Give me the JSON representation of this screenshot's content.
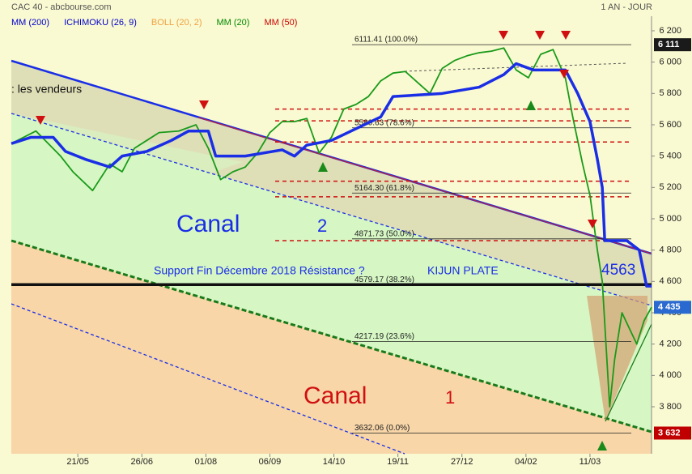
{
  "chart_data": {
    "type": "line",
    "title": "CAC 40 - abcbourse.com",
    "period": "1 AN - JOUR",
    "indicators": [
      {
        "name": "MM (200)",
        "color": "#0000cc"
      },
      {
        "name": "ICHIMOKU (26, 9)",
        "color": "#0000cc"
      },
      {
        "name": "BOLL (20, 2)",
        "color": "#f0a040"
      },
      {
        "name": "MM (20)",
        "color": "#008800"
      },
      {
        "name": "MM (50)",
        "color": "#cc0000"
      }
    ],
    "xlim": [
      0,
      260
    ],
    "xticks": [
      {
        "value": 27,
        "label": "21/05"
      },
      {
        "value": 53,
        "label": "26/06"
      },
      {
        "value": 79,
        "label": "01/08"
      },
      {
        "value": 105,
        "label": "06/09"
      },
      {
        "value": 131,
        "label": "14/10"
      },
      {
        "value": 157,
        "label": "19/11"
      },
      {
        "value": 183,
        "label": "27/12"
      },
      {
        "value": 209,
        "label": "04/02"
      },
      {
        "value": 235,
        "label": "11/03"
      }
    ],
    "ylim": [
      3500,
      6293
    ],
    "yticks": [
      {
        "value": 3800,
        "label": "3 800"
      },
      {
        "value": 4000,
        "label": "4 000"
      },
      {
        "value": 4200,
        "label": "4 200"
      },
      {
        "value": 4400,
        "label": "4 400"
      },
      {
        "value": 4600,
        "label": "4 600"
      },
      {
        "value": 4800,
        "label": "4 800"
      },
      {
        "value": 5000,
        "label": "5 000"
      },
      {
        "value": 5200,
        "label": "5 200"
      },
      {
        "value": 5400,
        "label": "5 400"
      },
      {
        "value": 5600,
        "label": "5 600"
      },
      {
        "value": 5800,
        "label": "5 800"
      },
      {
        "value": 6000,
        "label": "6 000"
      },
      {
        "value": 6200,
        "label": "6 200"
      }
    ],
    "series": [
      {
        "name": "CAC 40",
        "color": "#1a9a1a",
        "x": [
          0,
          10,
          20,
          25,
          33,
          40,
          45,
          50,
          55,
          60,
          68,
          75,
          80,
          85,
          90,
          95,
          100,
          105,
          110,
          115,
          120,
          125,
          130,
          135,
          140,
          145,
          150,
          155,
          160,
          165,
          170,
          175,
          180,
          185,
          190,
          195,
          200,
          205,
          210,
          215,
          220,
          225,
          228,
          232,
          235,
          238,
          240,
          243,
          245,
          248,
          251,
          254,
          257,
          260
        ],
        "values": [
          5480,
          5560,
          5400,
          5300,
          5180,
          5350,
          5300,
          5450,
          5500,
          5550,
          5560,
          5600,
          5450,
          5250,
          5300,
          5330,
          5420,
          5550,
          5620,
          5620,
          5640,
          5420,
          5520,
          5700,
          5730,
          5780,
          5880,
          5930,
          5940,
          5870,
          5800,
          5960,
          6010,
          6040,
          6060,
          6070,
          6090,
          5950,
          5900,
          6050,
          6080,
          5900,
          5650,
          5350,
          5150,
          4800,
          4600,
          3800,
          4100,
          4400,
          4300,
          4200,
          4350,
          4435
        ]
      },
      {
        "name": "ICHIMOKU (26, 9)",
        "color": "#1a2ee6",
        "x": [
          0,
          8,
          17,
          22,
          30,
          40,
          45,
          55,
          65,
          72,
          80,
          83,
          95,
          110,
          115,
          120,
          130,
          150,
          155,
          165,
          175,
          190,
          200,
          205,
          212,
          225,
          230,
          235,
          238,
          240,
          241,
          250,
          255,
          258,
          260
        ],
        "values": [
          5480,
          5520,
          5520,
          5430,
          5380,
          5330,
          5400,
          5430,
          5500,
          5560,
          5560,
          5400,
          5400,
          5440,
          5400,
          5470,
          5500,
          5650,
          5780,
          5790,
          5800,
          5840,
          5920,
          5990,
          5950,
          5950,
          5800,
          5620,
          5380,
          5200,
          4860,
          4860,
          4800,
          4570,
          4570
        ]
      }
    ],
    "fibonacci": [
      {
        "value": 6111.41,
        "label": "6111.41 (100.0%)"
      },
      {
        "value": 5580.63,
        "label": "5580.63  (78.6%)"
      },
      {
        "value": 5164.3,
        "label": "5164.30  (61.8%)"
      },
      {
        "value": 4871.73,
        "label": "4871.73  (50.0%)"
      },
      {
        "value": 4579.17,
        "label": "4579.17  (38.2%)"
      },
      {
        "value": 4217.19,
        "label": "4217.19  (23.6%)"
      },
      {
        "value": 3632.06,
        "label": "3632.06  (0.0%)"
      }
    ],
    "resistance_levels": [
      5700,
      5625,
      5490,
      5240,
      5140,
      4860
    ],
    "support_level": 4580,
    "price_markers": [
      {
        "value": 6111,
        "label": "6 111",
        "color": "#1a1a1a"
      },
      {
        "value": 4435,
        "label": "4 435",
        "color": "#2a6ad0"
      },
      {
        "value": 3632,
        "label": "3 632",
        "color": "#c00000"
      }
    ],
    "annotations": {
      "canal2": "Canal",
      "canal2_num": "2",
      "canal1": "Canal",
      "canal1_num": "1",
      "support": "Support Fin Décembre 2018 Résistance ?",
      "kijun": "KIJUN PLATE",
      "level": "4563",
      "sellers": ": les vendeurs"
    }
  }
}
